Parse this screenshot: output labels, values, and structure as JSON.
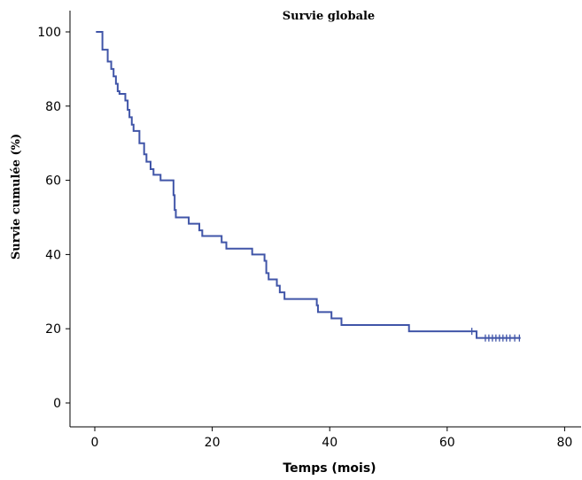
{
  "chart_data": {
    "type": "line",
    "title": "Survie globale",
    "xlabel": "Temps (mois)",
    "ylabel": "Survie cumulée (%)",
    "xlim": [
      -4,
      83
    ],
    "ylim": [
      -4,
      104
    ],
    "x_ticks": [
      0,
      20,
      40,
      60,
      80
    ],
    "y_ticks": [
      0,
      20,
      40,
      60,
      80,
      100
    ],
    "x_tick_labels": [
      "0",
      "20",
      "40",
      "60",
      "80"
    ],
    "y_tick_labels": [
      "0",
      "20",
      "40",
      "60",
      "80",
      "100"
    ],
    "grid": false,
    "series": [
      {
        "style": "step",
        "color": "#4055a8",
        "points": [
          [
            0.2,
            100
          ],
          [
            1.3,
            95.2
          ],
          [
            2.2,
            92
          ],
          [
            2.8,
            90
          ],
          [
            3.2,
            88
          ],
          [
            3.6,
            86
          ],
          [
            3.9,
            84
          ],
          [
            4.2,
            83.3
          ],
          [
            5.2,
            81.5
          ],
          [
            5.6,
            79
          ],
          [
            5.9,
            77
          ],
          [
            6.3,
            75
          ],
          [
            6.6,
            73.3
          ],
          [
            7.6,
            70
          ],
          [
            8.4,
            67
          ],
          [
            8.8,
            65
          ],
          [
            9.5,
            63
          ],
          [
            10.0,
            61.5
          ],
          [
            11.2,
            60
          ],
          [
            13.4,
            56
          ],
          [
            13.6,
            52
          ],
          [
            13.8,
            50
          ],
          [
            16.0,
            48.3
          ],
          [
            17.8,
            46.5
          ],
          [
            18.3,
            45
          ],
          [
            21.6,
            43.3
          ],
          [
            22.4,
            41.6
          ],
          [
            26.8,
            40
          ],
          [
            28.9,
            38.3
          ],
          [
            29.2,
            35
          ],
          [
            29.6,
            33.3
          ],
          [
            31.0,
            31.6
          ],
          [
            31.5,
            29.8
          ],
          [
            32.3,
            28
          ],
          [
            37.8,
            26.3
          ],
          [
            38.0,
            24.5
          ],
          [
            40.3,
            22.8
          ],
          [
            42.0,
            21
          ],
          [
            53.5,
            19.3
          ],
          [
            65.0,
            17.5
          ],
          [
            72.5,
            17.5
          ]
        ],
        "censored": [
          64.2,
          66.5,
          67.1,
          67.7,
          68.3,
          68.9,
          69.5,
          70.1,
          70.7,
          71.5,
          72.3
        ]
      }
    ]
  }
}
